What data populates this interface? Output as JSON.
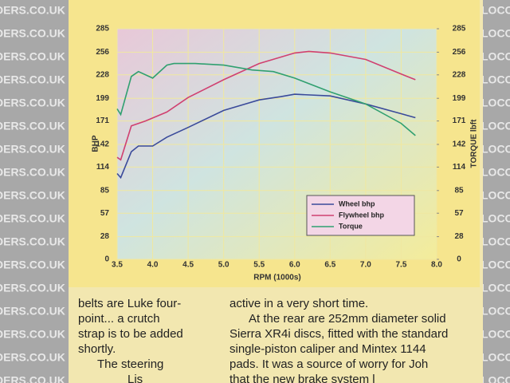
{
  "chart_data": {
    "type": "line",
    "y_label": "BHP",
    "y2_label": "TORQUE lbft",
    "x_label": "RPM (1000s)",
    "xlim": [
      3.5,
      8.0
    ],
    "xticks": [
      {
        "value": 3.5,
        "label": "3.5"
      },
      {
        "value": 4.0,
        "label": "4.0"
      },
      {
        "value": 4.5,
        "label": "4.5"
      },
      {
        "value": 5.0,
        "label": "5.0"
      },
      {
        "value": 5.5,
        "label": "5.5"
      },
      {
        "value": 6.0,
        "label": "6.0"
      },
      {
        "value": 6.5,
        "label": "6.5"
      },
      {
        "value": 7.0,
        "label": "7.0"
      },
      {
        "value": 7.5,
        "label": "7.5"
      },
      {
        "value": 8.0,
        "label": "8.0"
      }
    ],
    "ylim": [
      0,
      285
    ],
    "yticks": [
      0,
      28,
      57,
      85,
      114,
      142,
      171,
      199,
      228,
      256,
      285
    ],
    "y2lim": [
      0,
      285
    ],
    "y2ticks": [
      0,
      28,
      57,
      85,
      114,
      142,
      171,
      199,
      228,
      256,
      285
    ],
    "grid": true,
    "legend": "lower right",
    "series": [
      {
        "name": "Wheel bhp",
        "color": "#3a4a9a",
        "x": [
          3.5,
          3.55,
          3.7,
          3.8,
          4.0,
          4.2,
          4.5,
          5.0,
          5.5,
          5.8,
          6.0,
          6.5,
          7.0,
          7.5,
          7.7
        ],
        "values": [
          106,
          101,
          133,
          140,
          140,
          151,
          163,
          184,
          197,
          201,
          204,
          202,
          192,
          180,
          175
        ]
      },
      {
        "name": "Flywheel bhp",
        "color": "#d04070",
        "x": [
          3.5,
          3.55,
          3.7,
          3.9,
          4.2,
          4.5,
          5.0,
          5.5,
          6.0,
          6.2,
          6.5,
          7.0,
          7.5,
          7.7
        ],
        "values": [
          126,
          123,
          165,
          171,
          182,
          200,
          222,
          242,
          255,
          257,
          255,
          247,
          229,
          222
        ]
      },
      {
        "name": "Torque",
        "color": "#30a070",
        "axis": "y2",
        "x": [
          3.5,
          3.55,
          3.7,
          3.8,
          4.0,
          4.2,
          4.3,
          4.6,
          5.0,
          5.4,
          5.7,
          6.0,
          6.5,
          7.0,
          7.5,
          7.7
        ],
        "values": [
          186,
          179,
          226,
          232,
          224,
          240,
          242,
          242,
          240,
          234,
          232,
          224,
          207,
          192,
          168,
          153
        ]
      }
    ]
  },
  "article": {
    "left_column": [
      "belts are Luke four-",
      "point... a crutch",
      "strap is to be added",
      "shortly.",
      "The steering",
      "Lis"
    ],
    "right_column": [
      "active in a very short time.",
      "At the rear are 252mm diameter solid",
      "Sierra XR4i discs, fitted with the standard",
      "single-piston caliper and Mintex 1144",
      "pads. It was a source of worry for Joh",
      "that the new brake system l"
    ]
  },
  "watermark": {
    "left": "DERS.CO.UK",
    "right": "LOCOST"
  }
}
